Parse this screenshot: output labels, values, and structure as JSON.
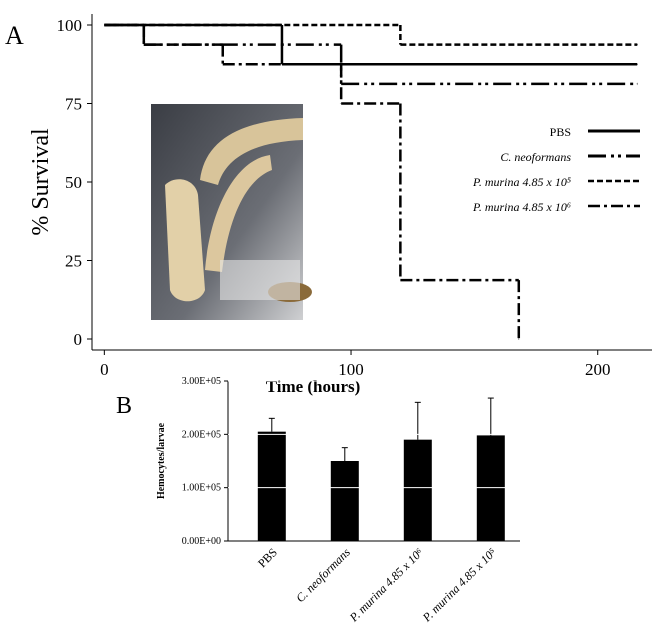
{
  "chart_data": [
    {
      "type": "step",
      "label": "A",
      "xlabel": "Time (hours)",
      "ylabel": "% Survival",
      "xlim": [
        -5,
        222
      ],
      "ylim": [
        -3.5,
        103.5
      ],
      "xticks": [
        0,
        100,
        200
      ],
      "yticks": [
        0,
        25,
        50,
        75,
        100
      ],
      "series": [
        {
          "name": "PBS",
          "color": "#000000",
          "dash": "none",
          "x": [
            0,
            72,
            216
          ],
          "values": [
            100,
            87.5,
            87.5
          ]
        },
        {
          "name": "C. neoformans",
          "color": "#000000",
          "dash": "18 5 3 4 3 5",
          "x": [
            0,
            16,
            96,
            216
          ],
          "values": [
            100,
            93.75,
            81.25,
            81.25
          ]
        },
        {
          "name": "P. murina 4.85 x 10⁵",
          "color": "#000000",
          "dash": "6 3",
          "x": [
            0,
            120,
            216
          ],
          "values": [
            100,
            93.75,
            93.75
          ]
        },
        {
          "name": "P. murina 4.85 x 10⁶",
          "color": "#000000",
          "dash": "12 4 3 4",
          "x": [
            0,
            16,
            48,
            96,
            120,
            168
          ],
          "values": [
            100,
            93.75,
            87.5,
            75,
            18.75,
            0
          ]
        }
      ]
    },
    {
      "type": "bar",
      "label": "B",
      "ylabel": "Hemocytes/larvae",
      "color": "#000000",
      "grid": true,
      "ylim": [
        0,
        300000
      ],
      "yticks": [
        {
          "value": 0,
          "label": "0.00E+00"
        },
        {
          "value": 100000,
          "label": "1.00E+05"
        },
        {
          "value": 200000,
          "label": "2.00E+05"
        },
        {
          "value": 300000,
          "label": "3.00E+05"
        }
      ],
      "categories": [
        "PBS",
        "C. neoformans",
        "P. murina 4.85 x 10⁶",
        "P. murina 4.85 x 10⁵"
      ],
      "values": [
        205000,
        150000,
        190000,
        198000
      ],
      "errors": [
        25000,
        25000,
        70000,
        70000
      ]
    }
  ]
}
